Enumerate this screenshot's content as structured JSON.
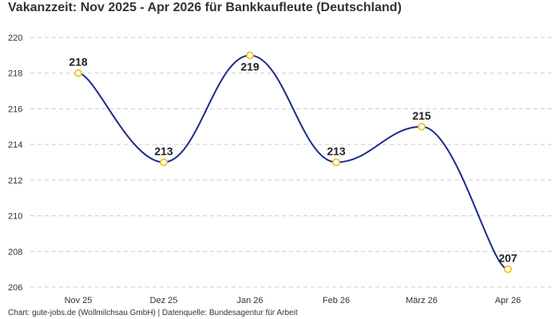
{
  "chart_data": {
    "type": "line",
    "title": "Vakanzzeit: Nov 2025 - Apr 2026 für Bankkaufleute (Deutschland)",
    "categories": [
      "Nov 25",
      "Dez 25",
      "Jan 26",
      "Feb 26",
      "März 26",
      "Apr 26"
    ],
    "series": [
      {
        "values": [
          218,
          213,
          219,
          213,
          215,
          207
        ]
      }
    ],
    "data_labels": [
      "218",
      "213",
      "219",
      "213",
      "215",
      "207"
    ],
    "ylim": [
      206,
      220
    ],
    "yticks": [
      206,
      208,
      210,
      212,
      214,
      216,
      218,
      220
    ],
    "grid": true,
    "line_style": "smooth",
    "colors": {
      "line": "#1a2a8c",
      "marker_edge": "#f0c419",
      "marker_fill": "#ffffff",
      "grid": "#cccccc"
    },
    "footer": "Chart: gute-jobs.de (Wollmilchsau GmbH) | Datenquelle: Bundesagentur für Arbeit"
  }
}
